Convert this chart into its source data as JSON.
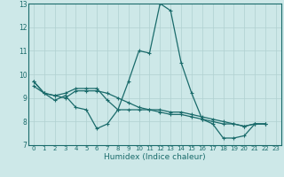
{
  "title": "",
  "xlabel": "Humidex (Indice chaleur)",
  "xlim": [
    -0.5,
    23.5
  ],
  "ylim": [
    7,
    13
  ],
  "yticks": [
    7,
    8,
    9,
    10,
    11,
    12,
    13
  ],
  "xticks": [
    0,
    1,
    2,
    3,
    4,
    5,
    6,
    7,
    8,
    9,
    10,
    11,
    12,
    13,
    14,
    15,
    16,
    17,
    18,
    19,
    20,
    21,
    22,
    23
  ],
  "bg_color": "#cde8e8",
  "line_color": "#1a6b6b",
  "grid_color": "#b0d0d0",
  "line1_x": [
    0,
    1,
    2,
    3,
    4,
    5,
    6,
    7,
    8,
    9,
    10,
    11,
    12,
    13,
    14,
    15,
    16,
    17,
    18,
    19,
    20,
    21,
    22
  ],
  "line1_y": [
    9.7,
    9.2,
    8.9,
    9.1,
    8.6,
    8.5,
    7.7,
    7.9,
    8.5,
    9.7,
    11.0,
    10.9,
    13.0,
    12.7,
    10.5,
    9.2,
    8.1,
    7.9,
    7.3,
    7.3,
    7.4,
    7.9,
    7.9
  ],
  "line2_x": [
    0,
    1,
    2,
    3,
    4,
    5,
    6,
    7,
    8,
    9,
    10,
    11,
    12,
    13,
    14,
    15,
    16,
    17,
    18,
    19,
    20,
    21,
    22
  ],
  "line2_y": [
    9.7,
    9.2,
    9.1,
    9.2,
    9.4,
    9.4,
    9.4,
    8.9,
    8.5,
    8.5,
    8.5,
    8.5,
    8.5,
    8.4,
    8.4,
    8.3,
    8.2,
    8.1,
    8.0,
    7.9,
    7.8,
    7.9,
    7.9
  ],
  "line3_x": [
    0,
    1,
    2,
    3,
    4,
    5,
    6,
    7,
    8,
    9,
    10,
    11,
    12,
    13,
    14,
    15,
    16,
    17,
    18,
    19,
    20,
    21,
    22
  ],
  "line3_y": [
    9.5,
    9.2,
    9.1,
    9.0,
    9.3,
    9.3,
    9.3,
    9.2,
    9.0,
    8.8,
    8.6,
    8.5,
    8.4,
    8.3,
    8.3,
    8.2,
    8.1,
    8.0,
    7.9,
    7.9,
    7.8,
    7.9,
    7.9
  ]
}
